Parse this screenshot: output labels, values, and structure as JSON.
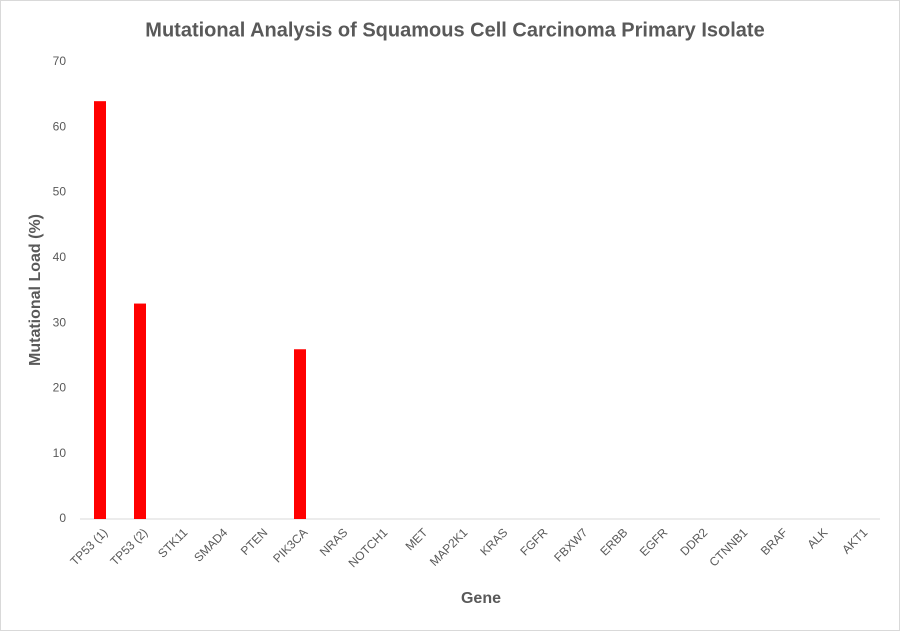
{
  "chart_data": {
    "type": "bar",
    "title": "Mutational Analysis of Squamous Cell Carcinoma Primary Isolate",
    "x_label": "Gene",
    "y_label": "Mutational Load (%)",
    "categories": [
      "TP53 (1)",
      "TP53 (2)",
      "STK11",
      "SMAD4",
      "PTEN",
      "PIK3CA",
      "NRAS",
      "NOTCH1",
      "MET",
      "MAP2K1",
      "KRAS",
      "FGFR",
      "FBXW7",
      "ERBB",
      "EGFR",
      "DDR2",
      "CTNNB1",
      "BRAF",
      "ALK",
      "AKT1"
    ],
    "values": [
      64,
      33,
      0,
      0,
      0,
      26,
      0,
      0,
      0,
      0,
      0,
      0,
      0,
      0,
      0,
      0,
      0,
      0,
      0,
      0
    ],
    "color": "#ff0000",
    "ylim": [
      0,
      70
    ],
    "yticks": [
      0,
      10,
      20,
      30,
      40,
      50,
      60,
      70
    ],
    "grid": false
  }
}
